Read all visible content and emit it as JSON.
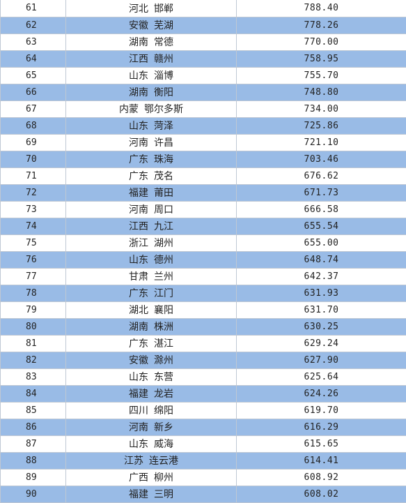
{
  "rows": [
    {
      "rank": "61",
      "province": "河北",
      "city": "邯郸",
      "value": "788.40"
    },
    {
      "rank": "62",
      "province": "安徽",
      "city": "芜湖",
      "value": "778.26"
    },
    {
      "rank": "63",
      "province": "湖南",
      "city": "常德",
      "value": "770.00"
    },
    {
      "rank": "64",
      "province": "江西",
      "city": "赣州",
      "value": "758.95"
    },
    {
      "rank": "65",
      "province": "山东",
      "city": "淄博",
      "value": "755.70"
    },
    {
      "rank": "66",
      "province": "湖南",
      "city": "衡阳",
      "value": "748.80"
    },
    {
      "rank": "67",
      "province": "内蒙",
      "city": "鄂尔多斯",
      "value": "734.00"
    },
    {
      "rank": "68",
      "province": "山东",
      "city": "菏泽",
      "value": "725.86"
    },
    {
      "rank": "69",
      "province": "河南",
      "city": "许昌",
      "value": "721.10"
    },
    {
      "rank": "70",
      "province": "广东",
      "city": "珠海",
      "value": "703.46"
    },
    {
      "rank": "71",
      "province": "广东",
      "city": "茂名",
      "value": "676.62"
    },
    {
      "rank": "72",
      "province": "福建",
      "city": "莆田",
      "value": "671.73"
    },
    {
      "rank": "73",
      "province": "河南",
      "city": "周口",
      "value": "666.58"
    },
    {
      "rank": "74",
      "province": "江西",
      "city": "九江",
      "value": "655.54"
    },
    {
      "rank": "75",
      "province": "浙江",
      "city": "湖州",
      "value": "655.00"
    },
    {
      "rank": "76",
      "province": "山东",
      "city": "德州",
      "value": "648.74"
    },
    {
      "rank": "77",
      "province": "甘肃",
      "city": "兰州",
      "value": "642.37"
    },
    {
      "rank": "78",
      "province": "广东",
      "city": "江门",
      "value": "631.93"
    },
    {
      "rank": "79",
      "province": "湖北",
      "city": "襄阳",
      "value": "631.70"
    },
    {
      "rank": "80",
      "province": "湖南",
      "city": "株洲",
      "value": "630.25"
    },
    {
      "rank": "81",
      "province": "广东",
      "city": "湛江",
      "value": "629.24"
    },
    {
      "rank": "82",
      "province": "安徽",
      "city": "滁州",
      "value": "627.90"
    },
    {
      "rank": "83",
      "province": "山东",
      "city": "东营",
      "value": "625.64"
    },
    {
      "rank": "84",
      "province": "福建",
      "city": "龙岩",
      "value": "624.26"
    },
    {
      "rank": "85",
      "province": "四川",
      "city": "绵阳",
      "value": "619.70"
    },
    {
      "rank": "86",
      "province": "河南",
      "city": "新乡",
      "value": "616.29"
    },
    {
      "rank": "87",
      "province": "山东",
      "city": "威海",
      "value": "615.65"
    },
    {
      "rank": "88",
      "province": "江苏",
      "city": "连云港",
      "value": "614.41"
    },
    {
      "rank": "89",
      "province": "广西",
      "city": "柳州",
      "value": "608.92"
    },
    {
      "rank": "90",
      "province": "福建",
      "city": "三明",
      "value": "608.02"
    }
  ]
}
